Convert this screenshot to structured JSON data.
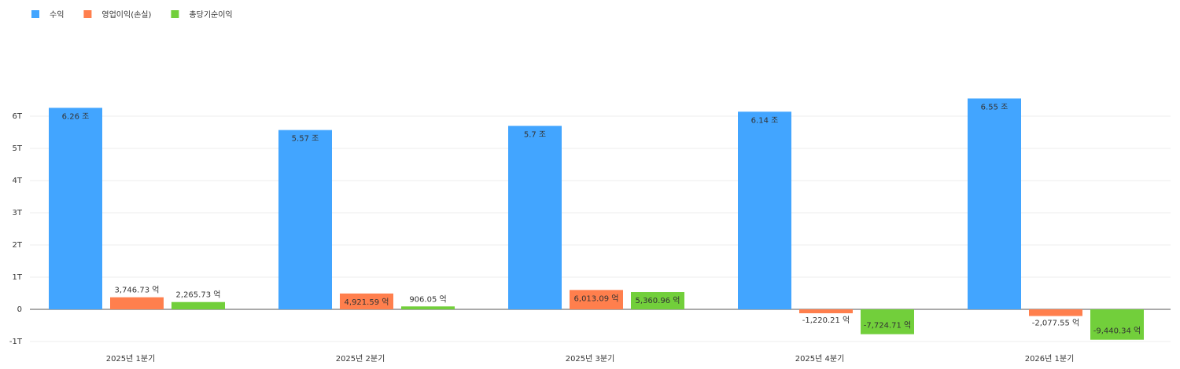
{
  "chart_data": {
    "type": "bar",
    "categories": [
      "2025년 1분기",
      "2025년 2분기",
      "2025년 3분기",
      "2025년 4분기",
      "2026년 1분기"
    ],
    "series": [
      {
        "name": "수익",
        "color": "#42a5ff",
        "values": [
          6.26,
          5.57,
          5.7,
          6.14,
          6.55
        ],
        "value_labels": [
          "6.26 조",
          "5.57 조",
          "5.7 조",
          "6.14 조",
          "6.55 조"
        ]
      },
      {
        "name": "영업이익(손실)",
        "color": "#ff7f4d",
        "values": [
          0.374673,
          0.492159,
          0.601309,
          -0.122021,
          -0.207755
        ],
        "value_labels": [
          "3,746.73 억",
          "4,921.59 억",
          "6,013.09 억",
          "-1,220.21 억",
          "-2,077.55 억"
        ]
      },
      {
        "name": "총당기순이익",
        "color": "#72cf3b",
        "values": [
          0.226573,
          0.090605,
          0.536096,
          -0.772471,
          -0.944034
        ],
        "value_labels": [
          "2,265.73 억",
          "906.05 억",
          "5,360.96 억",
          "-7,724.71 억",
          "-9,440.34 억"
        ]
      }
    ],
    "ylim": [
      -1,
      7
    ],
    "yticks": [
      {
        "value": -1,
        "label": "-1T"
      },
      0,
      {
        "value": 1,
        "label": "1T"
      },
      {
        "value": 2,
        "label": "2T"
      },
      {
        "value": 3,
        "label": "3T"
      },
      {
        "value": 4,
        "label": "4T"
      },
      {
        "value": 5,
        "label": "5T"
      },
      {
        "value": 6,
        "label": "6T"
      }
    ],
    "grid": true
  }
}
